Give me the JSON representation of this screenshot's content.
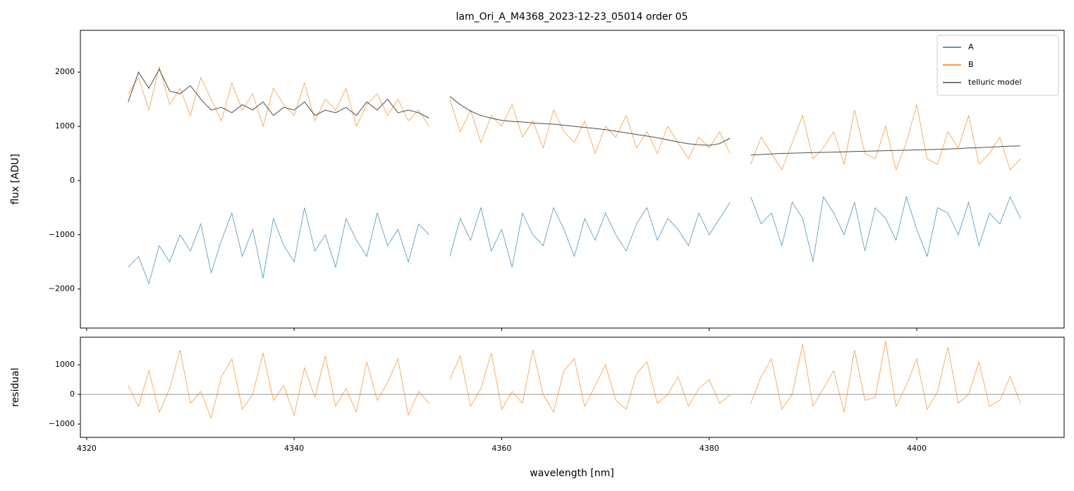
{
  "chart_data": [
    {
      "type": "line",
      "title": "lam_Ori_A_M4368_2023-12-23_05014  order 05",
      "ylabel": "flux [ADU]",
      "x": [
        4324,
        4325,
        4326,
        4327,
        4328,
        4329,
        4330,
        4331,
        4332,
        4333,
        4334,
        4335,
        4336,
        4337,
        4338,
        4339,
        4340,
        4341,
        4342,
        4343,
        4344,
        4345,
        4346,
        4347,
        4348,
        4349,
        4350,
        4351,
        4352,
        4353,
        4354,
        4355,
        4356,
        4357,
        4358,
        4359,
        4360,
        4361,
        4362,
        4363,
        4364,
        4365,
        4366,
        4367,
        4368,
        4369,
        4370,
        4371,
        4372,
        4373,
        4374,
        4375,
        4376,
        4377,
        4378,
        4379,
        4380,
        4381,
        4382,
        4383,
        4384,
        4385,
        4386,
        4387,
        4388,
        4389,
        4390,
        4391,
        4392,
        4393,
        4394,
        4395,
        4396,
        4397,
        4398,
        4399,
        4400,
        4401,
        4402,
        4403,
        4404,
        4405,
        4406,
        4407,
        4408,
        4409,
        4410
      ],
      "series": [
        {
          "name": "A",
          "color": "#1f77b4",
          "values": [
            -1600,
            -1400,
            -1900,
            -1200,
            -1500,
            -1000,
            -1300,
            -800,
            -1700,
            -1100,
            -600,
            -1400,
            -900,
            -1800,
            -700,
            -1200,
            -1500,
            -500,
            -1300,
            -1000,
            -1600,
            -700,
            -1100,
            -1400,
            -600,
            -1200,
            -900,
            -1500,
            -800,
            -1000,
            null,
            -1400,
            -700,
            -1100,
            -500,
            -1300,
            -900,
            -1600,
            -600,
            -1000,
            -1200,
            -500,
            -900,
            -1400,
            -700,
            -1100,
            -600,
            -1000,
            -1300,
            -800,
            -500,
            -1100,
            -700,
            -900,
            -1200,
            -600,
            -1000,
            -700,
            -400,
            null,
            -300,
            -800,
            -600,
            -1200,
            -400,
            -700,
            -1500,
            -300,
            -600,
            -1000,
            -400,
            -1300,
            -500,
            -700,
            -1100,
            -300,
            -900,
            -1400,
            -500,
            -600,
            -1000,
            -400,
            -1200,
            -600,
            -800,
            -300,
            -700
          ]
        },
        {
          "name": "B",
          "color": "#ff7f0e",
          "values": [
            1600,
            1900,
            1300,
            2100,
            1400,
            1700,
            1200,
            1900,
            1500,
            1100,
            1800,
            1300,
            1600,
            1000,
            1700,
            1400,
            1200,
            1800,
            1100,
            1500,
            1300,
            1700,
            1000,
            1400,
            1600,
            1200,
            1500,
            1100,
            1300,
            1000,
            null,
            1500,
            900,
            1300,
            700,
            1200,
            1000,
            1400,
            800,
            1100,
            600,
            1300,
            900,
            700,
            1100,
            500,
            1000,
            800,
            1200,
            600,
            900,
            500,
            1000,
            700,
            400,
            800,
            600,
            900,
            500,
            null,
            300,
            800,
            500,
            200,
            700,
            1200,
            400,
            600,
            900,
            300,
            1300,
            500,
            400,
            1000,
            200,
            700,
            1400,
            400,
            300,
            900,
            600,
            1200,
            300,
            500,
            800,
            200,
            400
          ]
        },
        {
          "name": "telluric model",
          "color": "#4d4d4d",
          "values": [
            1450,
            2000,
            1700,
            2050,
            1650,
            1600,
            1750,
            1500,
            1300,
            1350,
            1250,
            1400,
            1300,
            1450,
            1200,
            1350,
            1300,
            1450,
            1200,
            1300,
            1250,
            1350,
            1200,
            1450,
            1300,
            1500,
            1250,
            1300,
            1250,
            1150,
            null,
            1550,
            1400,
            1280,
            1200,
            1150,
            1110,
            1090,
            1080,
            1060,
            1050,
            1040,
            1020,
            1000,
            980,
            960,
            940,
            910,
            880,
            850,
            820,
            790,
            750,
            710,
            680,
            660,
            650,
            680,
            780,
            null,
            470,
            480,
            490,
            500,
            505,
            510,
            515,
            520,
            525,
            530,
            535,
            540,
            545,
            550,
            555,
            560,
            565,
            570,
            575,
            580,
            590,
            600,
            605,
            615,
            625,
            635,
            640
          ]
        }
      ],
      "xlim": [
        4319.4,
        4414.2
      ],
      "xticks": [
        4320,
        4340,
        4360,
        4380,
        4400
      ],
      "ylim": [
        -2720,
        2770
      ],
      "yticks": [
        {
          "value": -2000,
          "label": "−2000"
        },
        {
          "value": -1000,
          "label": "−1000"
        },
        0,
        1000,
        2000
      ],
      "legend": "upper right"
    },
    {
      "type": "line",
      "ylabel": "residual",
      "xlabel": "wavelength [nm]",
      "color": "#ff7f0e",
      "x": [
        4324,
        4325,
        4326,
        4327,
        4328,
        4329,
        4330,
        4331,
        4332,
        4333,
        4334,
        4335,
        4336,
        4337,
        4338,
        4339,
        4340,
        4341,
        4342,
        4343,
        4344,
        4345,
        4346,
        4347,
        4348,
        4349,
        4350,
        4351,
        4352,
        4353,
        4354,
        4355,
        4356,
        4357,
        4358,
        4359,
        4360,
        4361,
        4362,
        4363,
        4364,
        4365,
        4366,
        4367,
        4368,
        4369,
        4370,
        4371,
        4372,
        4373,
        4374,
        4375,
        4376,
        4377,
        4378,
        4379,
        4380,
        4381,
        4382,
        4383,
        4384,
        4385,
        4386,
        4387,
        4388,
        4389,
        4390,
        4391,
        4392,
        4393,
        4394,
        4395,
        4396,
        4397,
        4398,
        4399,
        4400,
        4401,
        4402,
        4403,
        4404,
        4405,
        4406,
        4407,
        4408,
        4409,
        4410
      ],
      "values": [
        300,
        -400,
        800,
        -600,
        200,
        1500,
        -300,
        100,
        -800,
        600,
        1200,
        -500,
        0,
        1400,
        -200,
        300,
        -700,
        900,
        -100,
        1300,
        -400,
        200,
        -600,
        1100,
        -200,
        400,
        1200,
        -700,
        100,
        -300,
        null,
        500,
        1300,
        -400,
        200,
        1400,
        -500,
        100,
        -300,
        1500,
        0,
        -600,
        800,
        1200,
        -400,
        300,
        1000,
        -200,
        -500,
        700,
        1100,
        -300,
        0,
        600,
        -400,
        200,
        500,
        -300,
        0,
        null,
        -300,
        600,
        1200,
        -500,
        0,
        1700,
        -400,
        200,
        800,
        -600,
        1500,
        -200,
        -100,
        1800,
        -400,
        300,
        1200,
        -500,
        100,
        1600,
        -300,
        0,
        1100,
        -400,
        -200,
        600,
        -300
      ],
      "hline": 0,
      "xlim": [
        4319.4,
        4414.2
      ],
      "xticks": [
        4320,
        4340,
        4360,
        4380,
        4400
      ],
      "ylim": [
        -1450,
        1930
      ],
      "yticks": [
        {
          "value": -1000,
          "label": "−1000"
        },
        0,
        1000
      ]
    }
  ]
}
